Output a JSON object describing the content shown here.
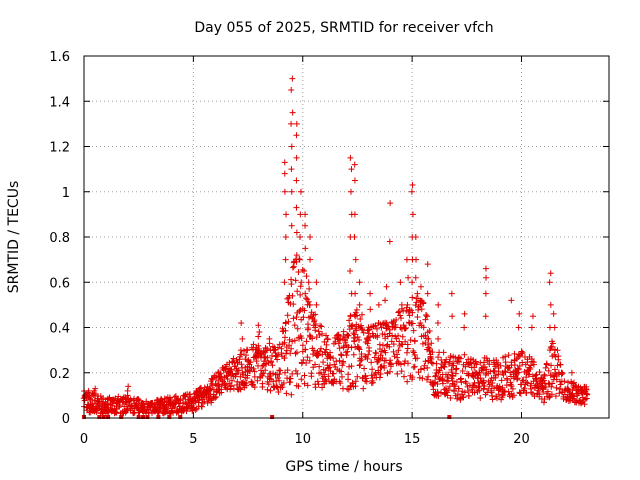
{
  "chart_data": {
    "type": "scatter",
    "title": "Day 055 of 2025, SRMTID for receiver vfch",
    "xlabel": "GPS time / hours",
    "ylabel": "SRMTID / TECUs",
    "xlim": [
      0,
      24
    ],
    "ylim": [
      0,
      1.6
    ],
    "xticks": [
      0,
      5,
      10,
      15,
      20
    ],
    "yticks": [
      0,
      0.2,
      0.4,
      0.6,
      0.8,
      1.0,
      1.2,
      1.4,
      1.6
    ],
    "xtick_labels": [
      "0",
      "5",
      "10",
      "15",
      "20"
    ],
    "ytick_labels": [
      "0",
      "0.2",
      "0.4",
      "0.6",
      "0.8",
      "1",
      "1.2",
      "1.4",
      "1.6"
    ],
    "grid": true,
    "marker": "plus",
    "color": "#e00000",
    "envelope": [
      {
        "x": 0.0,
        "base": 0.07,
        "spread": 0.05
      },
      {
        "x": 0.5,
        "base": 0.06,
        "spread": 0.05
      },
      {
        "x": 1.0,
        "base": 0.05,
        "spread": 0.04
      },
      {
        "x": 2.0,
        "base": 0.06,
        "spread": 0.04
      },
      {
        "x": 3.0,
        "base": 0.04,
        "spread": 0.03
      },
      {
        "x": 4.0,
        "base": 0.06,
        "spread": 0.04
      },
      {
        "x": 5.0,
        "base": 0.07,
        "spread": 0.04
      },
      {
        "x": 5.5,
        "base": 0.1,
        "spread": 0.05
      },
      {
        "x": 6.0,
        "base": 0.14,
        "spread": 0.06
      },
      {
        "x": 6.5,
        "base": 0.18,
        "spread": 0.06
      },
      {
        "x": 7.0,
        "base": 0.2,
        "spread": 0.08
      },
      {
        "x": 7.5,
        "base": 0.22,
        "spread": 0.09
      },
      {
        "x": 8.0,
        "base": 0.24,
        "spread": 0.1
      },
      {
        "x": 8.5,
        "base": 0.22,
        "spread": 0.1
      },
      {
        "x": 9.0,
        "base": 0.22,
        "spread": 0.12
      },
      {
        "x": 9.5,
        "base": 0.4,
        "spread": 0.3
      },
      {
        "x": 10.0,
        "base": 0.45,
        "spread": 0.3
      },
      {
        "x": 10.5,
        "base": 0.3,
        "spread": 0.18
      },
      {
        "x": 11.0,
        "base": 0.25,
        "spread": 0.12
      },
      {
        "x": 12.0,
        "base": 0.28,
        "spread": 0.15
      },
      {
        "x": 12.5,
        "base": 0.3,
        "spread": 0.2
      },
      {
        "x": 13.0,
        "base": 0.28,
        "spread": 0.13
      },
      {
        "x": 14.0,
        "base": 0.3,
        "spread": 0.13
      },
      {
        "x": 15.0,
        "base": 0.35,
        "spread": 0.2
      },
      {
        "x": 15.5,
        "base": 0.35,
        "spread": 0.18
      },
      {
        "x": 16.0,
        "base": 0.2,
        "spread": 0.1
      },
      {
        "x": 17.0,
        "base": 0.18,
        "spread": 0.1
      },
      {
        "x": 18.0,
        "base": 0.18,
        "spread": 0.1
      },
      {
        "x": 19.0,
        "base": 0.17,
        "spread": 0.1
      },
      {
        "x": 20.0,
        "base": 0.2,
        "spread": 0.1
      },
      {
        "x": 20.5,
        "base": 0.18,
        "spread": 0.08
      },
      {
        "x": 21.0,
        "base": 0.12,
        "spread": 0.06
      },
      {
        "x": 21.5,
        "base": 0.25,
        "spread": 0.15
      },
      {
        "x": 22.0,
        "base": 0.12,
        "spread": 0.05
      },
      {
        "x": 23.0,
        "base": 0.1,
        "spread": 0.04
      }
    ],
    "peaks": [
      {
        "x": 0.2,
        "values": [
          0.12,
          0.1,
          0.09
        ]
      },
      {
        "x": 0.5,
        "values": [
          0.11,
          0.13,
          0.12
        ]
      },
      {
        "x": 2.0,
        "values": [
          0.14,
          0.12,
          0.1
        ]
      },
      {
        "x": 7.2,
        "values": [
          0.35,
          0.42,
          0.3
        ]
      },
      {
        "x": 8.0,
        "values": [
          0.38,
          0.41,
          0.36
        ]
      },
      {
        "x": 8.5,
        "values": [
          0.35,
          0.3,
          0.33
        ]
      },
      {
        "x": 9.2,
        "values": [
          0.6,
          0.7,
          0.8,
          0.9,
          1.0,
          1.08,
          1.13
        ]
      },
      {
        "x": 9.5,
        "values": [
          0.85,
          1.0,
          1.1,
          1.2,
          1.3,
          1.35,
          1.45,
          1.5
        ]
      },
      {
        "x": 9.7,
        "values": [
          0.72,
          0.82,
          0.93,
          1.05,
          1.15,
          1.25,
          1.3
        ]
      },
      {
        "x": 9.9,
        "values": [
          0.6,
          0.7,
          0.8,
          0.9,
          1.0
        ]
      },
      {
        "x": 10.1,
        "values": [
          0.55,
          0.65,
          0.75,
          0.85,
          0.9
        ]
      },
      {
        "x": 10.3,
        "values": [
          0.5,
          0.6,
          0.7,
          0.8
        ]
      },
      {
        "x": 10.6,
        "values": [
          0.4,
          0.5,
          0.6
        ]
      },
      {
        "x": 12.2,
        "values": [
          0.45,
          0.55,
          0.65,
          0.8,
          0.9,
          1.0,
          1.1,
          1.15
        ]
      },
      {
        "x": 12.4,
        "values": [
          0.45,
          0.55,
          0.7,
          0.8,
          0.9,
          1.05,
          1.12
        ]
      },
      {
        "x": 12.6,
        "values": [
          0.4,
          0.5,
          0.6
        ]
      },
      {
        "x": 13.1,
        "values": [
          0.4,
          0.48,
          0.55
        ]
      },
      {
        "x": 13.5,
        "values": [
          0.42,
          0.5
        ]
      },
      {
        "x": 13.8,
        "values": [
          0.52,
          0.58
        ]
      },
      {
        "x": 14.0,
        "values": [
          0.78,
          0.95
        ]
      },
      {
        "x": 14.5,
        "values": [
          0.4,
          0.5,
          0.6
        ]
      },
      {
        "x": 14.8,
        "values": [
          0.5,
          0.62,
          0.7
        ]
      },
      {
        "x": 15.0,
        "values": [
          0.6,
          0.7,
          0.8,
          0.9,
          1.0,
          1.03
        ]
      },
      {
        "x": 15.2,
        "values": [
          0.55,
          0.62,
          0.7,
          0.8
        ]
      },
      {
        "x": 15.4,
        "values": [
          0.42,
          0.5,
          0.58
        ]
      },
      {
        "x": 15.7,
        "values": [
          0.45,
          0.55,
          0.68
        ]
      },
      {
        "x": 16.2,
        "values": [
          0.35,
          0.42,
          0.5
        ]
      },
      {
        "x": 16.8,
        "values": [
          0.45,
          0.55
        ]
      },
      {
        "x": 17.4,
        "values": [
          0.4,
          0.46
        ]
      },
      {
        "x": 18.4,
        "values": [
          0.45,
          0.55,
          0.62,
          0.66
        ]
      },
      {
        "x": 19.5,
        "values": [
          0.52
        ]
      },
      {
        "x": 19.9,
        "values": [
          0.4,
          0.46
        ]
      },
      {
        "x": 20.5,
        "values": [
          0.4,
          0.45
        ]
      },
      {
        "x": 21.3,
        "values": [
          0.3,
          0.4,
          0.5,
          0.6,
          0.64
        ]
      },
      {
        "x": 21.5,
        "values": [
          0.3,
          0.4,
          0.46
        ]
      },
      {
        "x": 22.3,
        "values": [
          0.16,
          0.2
        ]
      }
    ],
    "ground_markers": [
      0.0,
      0.7,
      0.9,
      1.1,
      1.7,
      2.5,
      2.7,
      2.9,
      3.4,
      3.9,
      4.4,
      8.6,
      16.7
    ]
  }
}
